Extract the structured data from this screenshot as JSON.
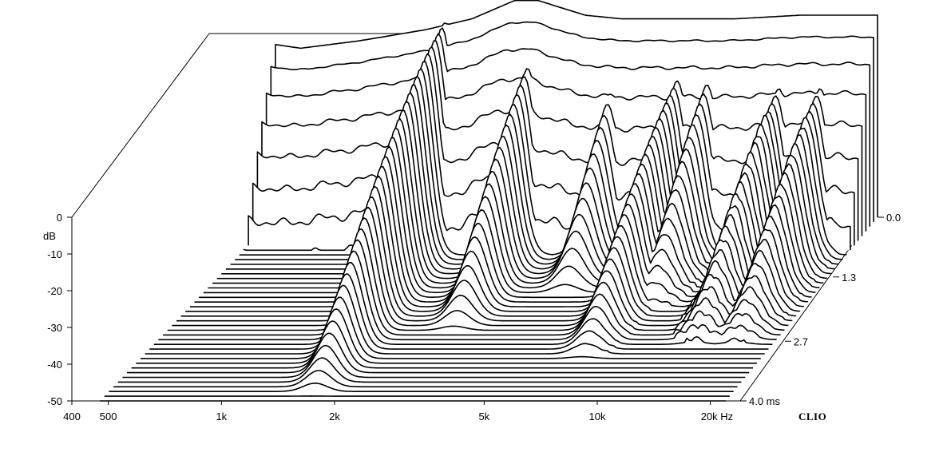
{
  "chart_data": {
    "type": "waterfall",
    "brand": "CLIO",
    "y_axis": {
      "unit": "dB",
      "range": [
        -50,
        0
      ],
      "ticks": [
        {
          "value": 0,
          "label": "0"
        },
        {
          "value": -10,
          "label": "-10"
        },
        {
          "value": -20,
          "label": "-20"
        },
        {
          "value": -30,
          "label": "-30"
        },
        {
          "value": -40,
          "label": "-40"
        },
        {
          "value": -50,
          "label": "-50"
        }
      ]
    },
    "x_axis": {
      "unit": "Hz",
      "scale": "log",
      "range": [
        400,
        24000
      ],
      "ticks": [
        {
          "value": 400,
          "label": "400"
        },
        {
          "value": 500,
          "label": "500"
        },
        {
          "value": 1000,
          "label": "1k"
        },
        {
          "value": 2000,
          "label": "2k"
        },
        {
          "value": 5000,
          "label": "5k"
        },
        {
          "value": 10000,
          "label": "10k"
        },
        {
          "value": 20000,
          "label": "20k Hz"
        }
      ]
    },
    "z_axis": {
      "unit": "ms",
      "range": [
        0,
        4.0
      ],
      "ticks": [
        {
          "value": 0.0,
          "label": "0.0"
        },
        {
          "value": 1.3,
          "label": "1.3"
        },
        {
          "value": 2.7,
          "label": "2.7"
        },
        {
          "value": 4.0,
          "label": "4.0 ms"
        }
      ]
    },
    "slice_count": 40,
    "surface": {
      "initial_response": {
        "freq_hz": [
          600,
          700,
          1000,
          1500,
          2000,
          2600,
          3000,
          4000,
          5000,
          7000,
          10000,
          15000,
          20000
        ],
        "level_db": [
          -3,
          -4,
          -2,
          1,
          4,
          9,
          9,
          5,
          4,
          4,
          4,
          5,
          5
        ]
      },
      "resonances": [
        {
          "freq_hz": 1700,
          "peak_db": 3,
          "decay_ms": 3.9
        },
        {
          "freq_hz": 3000,
          "peak_db": -4,
          "decay_ms": 2.5
        },
        {
          "freq_hz": 5000,
          "peak_db": -10,
          "decay_ms": 1.7
        },
        {
          "freq_hz": 7500,
          "peak_db": -8,
          "decay_ms": 3.1
        },
        {
          "freq_hz": 9000,
          "peak_db": -8,
          "decay_ms": 2.0
        },
        {
          "freq_hz": 14000,
          "peak_db": -10,
          "decay_ms": 2.8
        },
        {
          "freq_hz": 18000,
          "peak_db": -10,
          "decay_ms": 2.8
        }
      ],
      "floor_db": -50
    }
  }
}
